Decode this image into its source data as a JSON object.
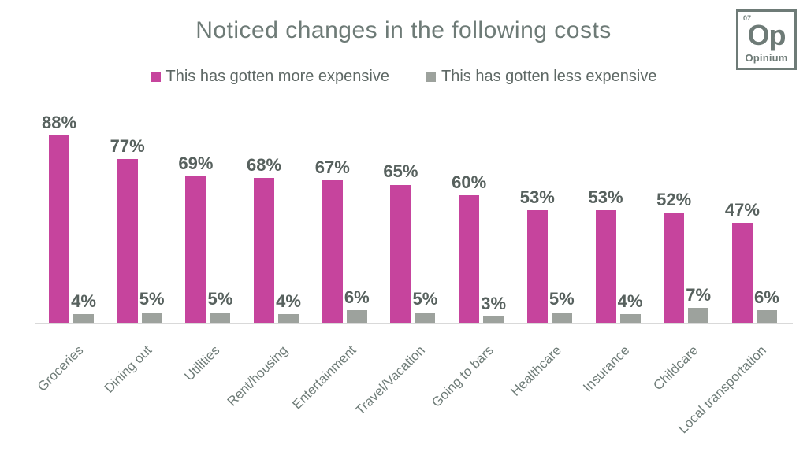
{
  "chart": {
    "title": "Noticed changes in the following costs"
  },
  "logo": {
    "number": "07",
    "symbol": "Op",
    "name": "Opinium"
  },
  "chart_data": {
    "type": "bar",
    "title": "Noticed changes in the following costs",
    "categories": [
      "Groceries",
      "Dining out",
      "Utilities",
      "Rent/housing",
      "Entertainment",
      "Travel/Vacation",
      "Going to bars",
      "Healthcare",
      "Insurance",
      "Childcare",
      "Local transportation"
    ],
    "series": [
      {
        "name": "This has gotten more expensive",
        "color": "#C6449D",
        "values": [
          88,
          77,
          69,
          68,
          67,
          65,
          60,
          53,
          53,
          52,
          47
        ]
      },
      {
        "name": "This has gotten less expensive",
        "color": "#9DA29D",
        "values": [
          4,
          5,
          5,
          4,
          6,
          5,
          3,
          5,
          4,
          7,
          6
        ]
      }
    ],
    "value_suffix": "%",
    "data_labels": true,
    "xlabel": "",
    "ylabel": "",
    "ylim": [
      0,
      100
    ],
    "grid": false,
    "legend_position": "top",
    "colors": {
      "background": "#FFFFFF",
      "title_text": "#6E7B77",
      "value_label_text": "#57615E",
      "category_label_text": "#6F7C78",
      "legend_text": "#5E6865",
      "axis_line": "#D9D9D9"
    }
  }
}
